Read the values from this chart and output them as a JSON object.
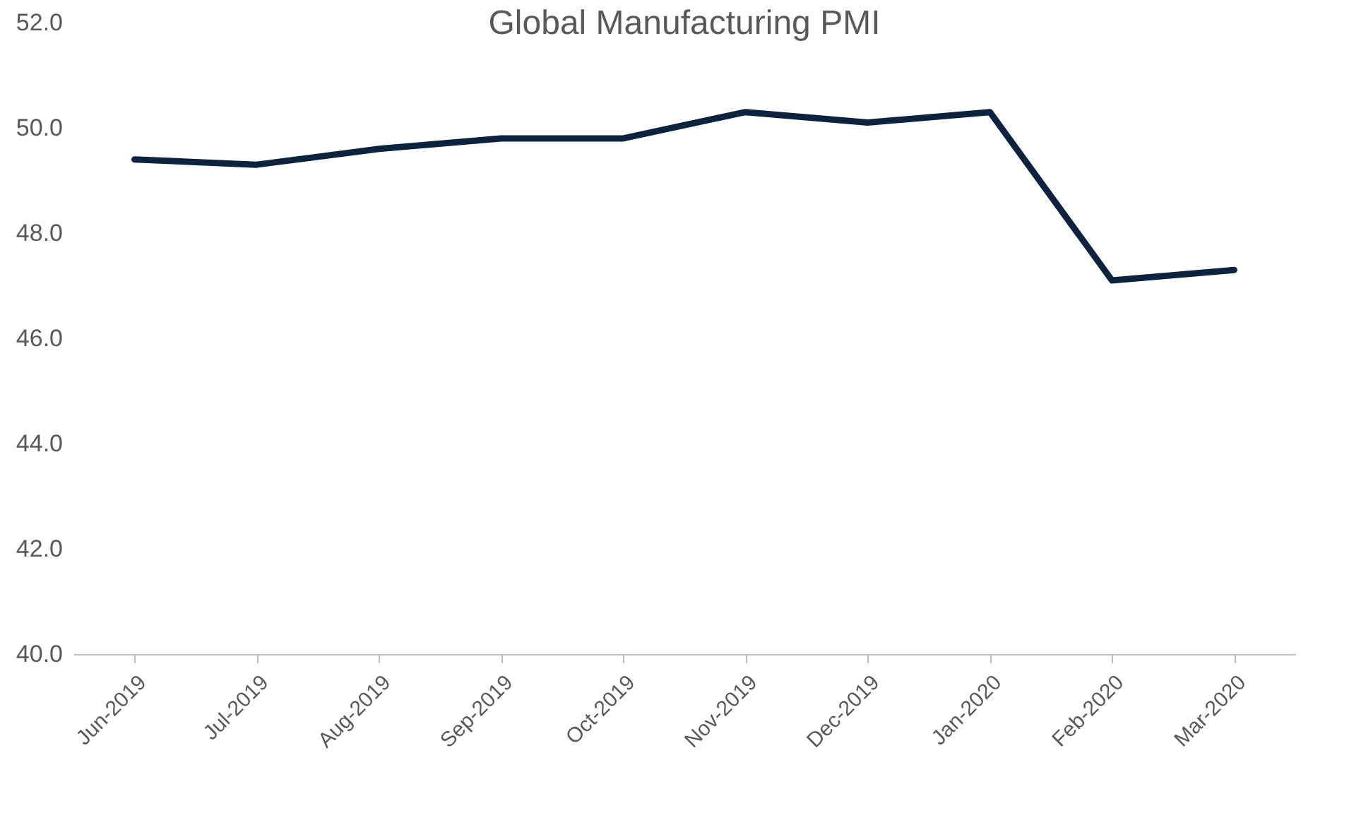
{
  "chart_data": {
    "type": "line",
    "title": "Global Manufacturing PMI",
    "categories": [
      "Jun-2019",
      "Jul-2019",
      "Aug-2019",
      "Sep-2019",
      "Oct-2019",
      "Nov-2019",
      "Dec-2019",
      "Jan-2020",
      "Feb-2020",
      "Mar-2020"
    ],
    "series": [
      {
        "color": "#0c2340",
        "values": [
          49.4,
          49.3,
          49.6,
          49.8,
          49.8,
          50.3,
          50.1,
          50.3,
          47.1,
          47.3
        ]
      }
    ],
    "ylim": [
      40,
      52
    ],
    "yticks": [
      {
        "value": 40,
        "label": "40.0"
      },
      {
        "value": 42,
        "label": "42.0"
      },
      {
        "value": 44,
        "label": "44.0"
      },
      {
        "value": 46,
        "label": "46.0"
      },
      {
        "value": 48,
        "label": "48.0"
      },
      {
        "value": 50,
        "label": "50.0"
      },
      {
        "value": 52,
        "label": "52.0"
      }
    ],
    "grid": false,
    "legend": false,
    "marker": "none",
    "line_style": "solid"
  }
}
